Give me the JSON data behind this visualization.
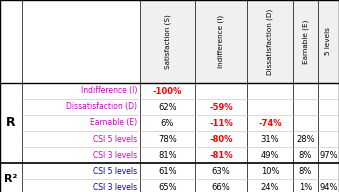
{
  "col_headers": [
    "Satisfaction (S)",
    "Indifference (I)",
    "Dissatisfaction (D)",
    "Earnable (E)",
    "5 levels"
  ],
  "row_sections": [
    {
      "label": "R",
      "rows": [
        {
          "name": "Indifference (I)",
          "values": [
            "-100%",
            "",
            "",
            "",
            ""
          ]
        },
        {
          "name": "Dissatisfaction (D)",
          "values": [
            "62%",
            "-59%",
            "",
            "",
            ""
          ]
        },
        {
          "name": "Earnable (E)",
          "values": [
            "6%",
            "-11%",
            "-74%",
            "",
            ""
          ]
        },
        {
          "name": "CSI 5 levels",
          "values": [
            "78%",
            "-80%",
            "31%",
            "28%",
            ""
          ]
        },
        {
          "name": "CSI 3 levels",
          "values": [
            "81%",
            "-81%",
            "49%",
            "8%",
            "97%"
          ]
        }
      ]
    },
    {
      "label": "R²",
      "rows": [
        {
          "name": "CSI 5 levels",
          "values": [
            "61%",
            "63%",
            "10%",
            "8%",
            ""
          ]
        },
        {
          "name": "CSI 3 levels",
          "values": [
            "65%",
            "66%",
            "24%",
            "1%",
            "94%"
          ]
        }
      ]
    }
  ],
  "negative_color": "#FF0000",
  "positive_color": "#000000",
  "row_label_color_R": "#CC00CC",
  "row_label_color_R2": "#0000AA",
  "header_color": "#000000",
  "background_color": "#FFFFFF",
  "figsize": [
    3.39,
    1.92
  ],
  "dpi": 100
}
